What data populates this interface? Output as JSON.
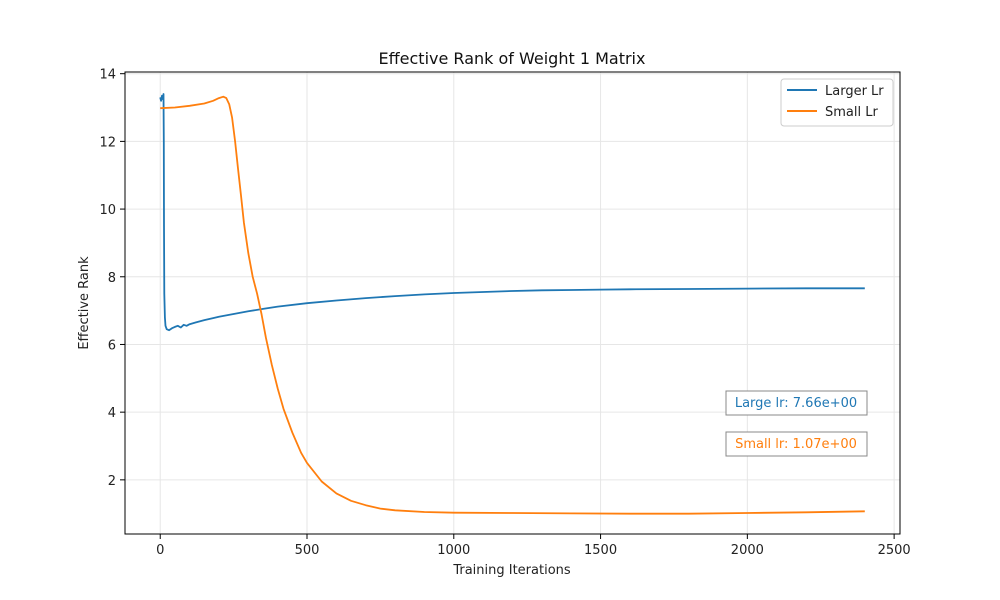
{
  "chart_data": {
    "type": "line",
    "title": "Effective Rank of Weight 1 Matrix",
    "xlabel": "Training Iterations",
    "ylabel": "Effective Rank",
    "xlim": [
      -120,
      2520
    ],
    "ylim": [
      0.4,
      14.05
    ],
    "xticks": [
      0,
      500,
      1000,
      1500,
      2000,
      2500
    ],
    "yticks": [
      2,
      4,
      6,
      8,
      10,
      12,
      14
    ],
    "grid": true,
    "legend_position": "top-right",
    "series": [
      {
        "name": "Larger Lr",
        "color": "#1f77b4",
        "points": [
          [
            0,
            13.3
          ],
          [
            3,
            13.2
          ],
          [
            6,
            13.35
          ],
          [
            9,
            13.25
          ],
          [
            11,
            13.4
          ],
          [
            12,
            12.0
          ],
          [
            13,
            9.5
          ],
          [
            14,
            7.5
          ],
          [
            16,
            6.8
          ],
          [
            18,
            6.55
          ],
          [
            22,
            6.45
          ],
          [
            30,
            6.42
          ],
          [
            40,
            6.48
          ],
          [
            50,
            6.52
          ],
          [
            60,
            6.55
          ],
          [
            70,
            6.5
          ],
          [
            80,
            6.58
          ],
          [
            90,
            6.55
          ],
          [
            100,
            6.6
          ],
          [
            120,
            6.65
          ],
          [
            150,
            6.72
          ],
          [
            180,
            6.78
          ],
          [
            200,
            6.82
          ],
          [
            250,
            6.9
          ],
          [
            300,
            6.98
          ],
          [
            350,
            7.05
          ],
          [
            400,
            7.12
          ],
          [
            500,
            7.22
          ],
          [
            600,
            7.3
          ],
          [
            700,
            7.37
          ],
          [
            800,
            7.43
          ],
          [
            900,
            7.48
          ],
          [
            1000,
            7.52
          ],
          [
            1100,
            7.55
          ],
          [
            1200,
            7.58
          ],
          [
            1300,
            7.6
          ],
          [
            1400,
            7.61
          ],
          [
            1500,
            7.62
          ],
          [
            1600,
            7.63
          ],
          [
            1800,
            7.64
          ],
          [
            2000,
            7.65
          ],
          [
            2200,
            7.66
          ],
          [
            2400,
            7.66
          ]
        ]
      },
      {
        "name": "Small Lr",
        "color": "#ff7f0e",
        "points": [
          [
            0,
            12.98
          ],
          [
            50,
            13.0
          ],
          [
            100,
            13.05
          ],
          [
            150,
            13.12
          ],
          [
            180,
            13.2
          ],
          [
            200,
            13.28
          ],
          [
            215,
            13.32
          ],
          [
            225,
            13.28
          ],
          [
            235,
            13.1
          ],
          [
            245,
            12.7
          ],
          [
            255,
            12.0
          ],
          [
            265,
            11.2
          ],
          [
            275,
            10.4
          ],
          [
            285,
            9.6
          ],
          [
            300,
            8.7
          ],
          [
            315,
            8.0
          ],
          [
            330,
            7.5
          ],
          [
            345,
            6.9
          ],
          [
            360,
            6.2
          ],
          [
            380,
            5.4
          ],
          [
            400,
            4.7
          ],
          [
            420,
            4.1
          ],
          [
            450,
            3.4
          ],
          [
            480,
            2.8
          ],
          [
            500,
            2.5
          ],
          [
            550,
            1.95
          ],
          [
            600,
            1.6
          ],
          [
            650,
            1.38
          ],
          [
            700,
            1.25
          ],
          [
            750,
            1.15
          ],
          [
            800,
            1.1
          ],
          [
            900,
            1.05
          ],
          [
            1000,
            1.03
          ],
          [
            1200,
            1.02
          ],
          [
            1400,
            1.01
          ],
          [
            1600,
            1.0
          ],
          [
            1800,
            1.0
          ],
          [
            2000,
            1.02
          ],
          [
            2200,
            1.04
          ],
          [
            2400,
            1.07
          ]
        ]
      }
    ],
    "annotations": [
      {
        "text": "Large lr: 7.66e+00",
        "color": "#1f77b4"
      },
      {
        "text": "Small lr: 1.07e+00",
        "color": "#ff7f0e"
      }
    ]
  }
}
